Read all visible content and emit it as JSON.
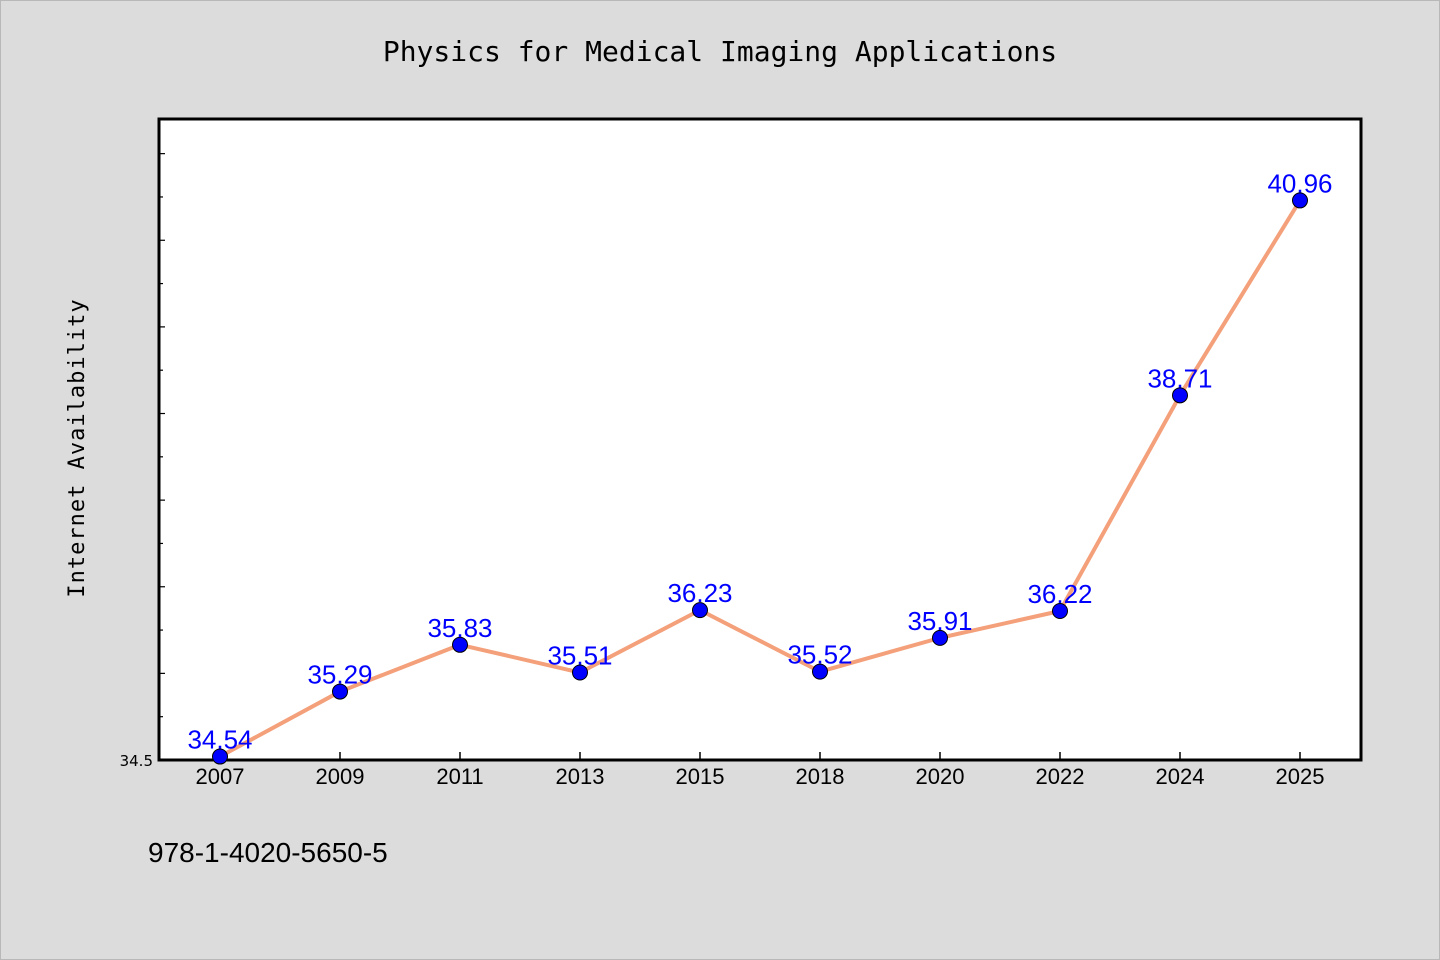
{
  "chart_data": {
    "type": "line",
    "title": "Physics for Medical Imaging Applications",
    "xlabel": "",
    "ylabel": "Internet Availability",
    "categories": [
      "2007",
      "2009",
      "2011",
      "2013",
      "2015",
      "2018",
      "2020",
      "2022",
      "2024",
      "2025"
    ],
    "series": [
      {
        "values": [
          34.54,
          35.29,
          35.83,
          35.51,
          36.23,
          35.52,
          35.91,
          36.22,
          38.71,
          40.96
        ]
      }
    ],
    "data_labels": [
      "34.54",
      "35.29",
      "35.83",
      "35.51",
      "36.23",
      "35.52",
      "35.91",
      "36.22",
      "38.71",
      "40.96"
    ],
    "y_tick_labels": [
      "34.5"
    ],
    "ylim": [
      34.5,
      41.9
    ],
    "grid": false,
    "legend": "none",
    "colors": {
      "line": "#f4a07a",
      "marker": "#0000ff",
      "label": "#0000ff",
      "background": "#dcdcdc",
      "plot_bg": "#ffffff"
    }
  },
  "footer": {
    "isbn": "978-1-4020-5650-5"
  }
}
